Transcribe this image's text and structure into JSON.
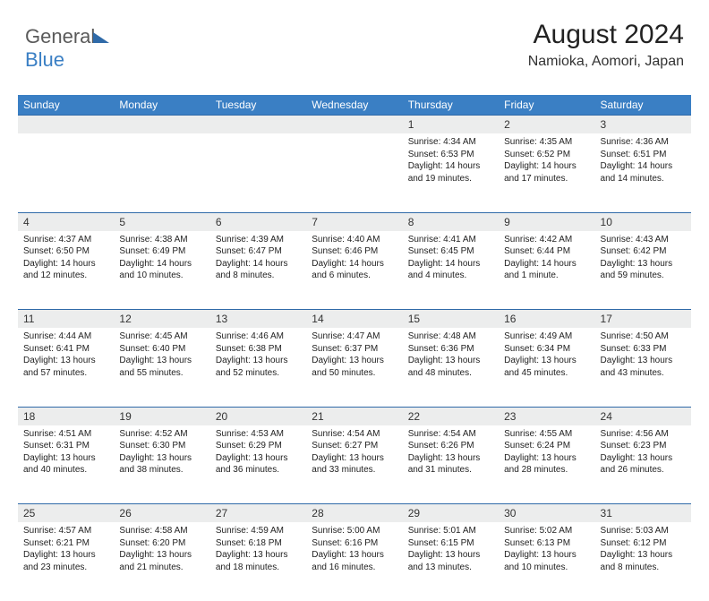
{
  "logo": {
    "text_gray": "General",
    "text_blue": "Blue"
  },
  "header": {
    "month_title": "August 2024",
    "location": "Namioka, Aomori, Japan"
  },
  "colors": {
    "header_bg": "#3a7fc4",
    "header_text": "#ffffff",
    "daynum_bg": "#eceded",
    "rule": "#2f6aa8",
    "body_text": "#222222"
  },
  "weekdays": [
    "Sunday",
    "Monday",
    "Tuesday",
    "Wednesday",
    "Thursday",
    "Friday",
    "Saturday"
  ],
  "grid": {
    "first_weekday_index": 4,
    "days_in_month": 31
  },
  "days": {
    "1": {
      "sunrise": "4:34 AM",
      "sunset": "6:53 PM",
      "daylight": "14 hours and 19 minutes."
    },
    "2": {
      "sunrise": "4:35 AM",
      "sunset": "6:52 PM",
      "daylight": "14 hours and 17 minutes."
    },
    "3": {
      "sunrise": "4:36 AM",
      "sunset": "6:51 PM",
      "daylight": "14 hours and 14 minutes."
    },
    "4": {
      "sunrise": "4:37 AM",
      "sunset": "6:50 PM",
      "daylight": "14 hours and 12 minutes."
    },
    "5": {
      "sunrise": "4:38 AM",
      "sunset": "6:49 PM",
      "daylight": "14 hours and 10 minutes."
    },
    "6": {
      "sunrise": "4:39 AM",
      "sunset": "6:47 PM",
      "daylight": "14 hours and 8 minutes."
    },
    "7": {
      "sunrise": "4:40 AM",
      "sunset": "6:46 PM",
      "daylight": "14 hours and 6 minutes."
    },
    "8": {
      "sunrise": "4:41 AM",
      "sunset": "6:45 PM",
      "daylight": "14 hours and 4 minutes."
    },
    "9": {
      "sunrise": "4:42 AM",
      "sunset": "6:44 PM",
      "daylight": "14 hours and 1 minute."
    },
    "10": {
      "sunrise": "4:43 AM",
      "sunset": "6:42 PM",
      "daylight": "13 hours and 59 minutes."
    },
    "11": {
      "sunrise": "4:44 AM",
      "sunset": "6:41 PM",
      "daylight": "13 hours and 57 minutes."
    },
    "12": {
      "sunrise": "4:45 AM",
      "sunset": "6:40 PM",
      "daylight": "13 hours and 55 minutes."
    },
    "13": {
      "sunrise": "4:46 AM",
      "sunset": "6:38 PM",
      "daylight": "13 hours and 52 minutes."
    },
    "14": {
      "sunrise": "4:47 AM",
      "sunset": "6:37 PM",
      "daylight": "13 hours and 50 minutes."
    },
    "15": {
      "sunrise": "4:48 AM",
      "sunset": "6:36 PM",
      "daylight": "13 hours and 48 minutes."
    },
    "16": {
      "sunrise": "4:49 AM",
      "sunset": "6:34 PM",
      "daylight": "13 hours and 45 minutes."
    },
    "17": {
      "sunrise": "4:50 AM",
      "sunset": "6:33 PM",
      "daylight": "13 hours and 43 minutes."
    },
    "18": {
      "sunrise": "4:51 AM",
      "sunset": "6:31 PM",
      "daylight": "13 hours and 40 minutes."
    },
    "19": {
      "sunrise": "4:52 AM",
      "sunset": "6:30 PM",
      "daylight": "13 hours and 38 minutes."
    },
    "20": {
      "sunrise": "4:53 AM",
      "sunset": "6:29 PM",
      "daylight": "13 hours and 36 minutes."
    },
    "21": {
      "sunrise": "4:54 AM",
      "sunset": "6:27 PM",
      "daylight": "13 hours and 33 minutes."
    },
    "22": {
      "sunrise": "4:54 AM",
      "sunset": "6:26 PM",
      "daylight": "13 hours and 31 minutes."
    },
    "23": {
      "sunrise": "4:55 AM",
      "sunset": "6:24 PM",
      "daylight": "13 hours and 28 minutes."
    },
    "24": {
      "sunrise": "4:56 AM",
      "sunset": "6:23 PM",
      "daylight": "13 hours and 26 minutes."
    },
    "25": {
      "sunrise": "4:57 AM",
      "sunset": "6:21 PM",
      "daylight": "13 hours and 23 minutes."
    },
    "26": {
      "sunrise": "4:58 AM",
      "sunset": "6:20 PM",
      "daylight": "13 hours and 21 minutes."
    },
    "27": {
      "sunrise": "4:59 AM",
      "sunset": "6:18 PM",
      "daylight": "13 hours and 18 minutes."
    },
    "28": {
      "sunrise": "5:00 AM",
      "sunset": "6:16 PM",
      "daylight": "13 hours and 16 minutes."
    },
    "29": {
      "sunrise": "5:01 AM",
      "sunset": "6:15 PM",
      "daylight": "13 hours and 13 minutes."
    },
    "30": {
      "sunrise": "5:02 AM",
      "sunset": "6:13 PM",
      "daylight": "13 hours and 10 minutes."
    },
    "31": {
      "sunrise": "5:03 AM",
      "sunset": "6:12 PM",
      "daylight": "13 hours and 8 minutes."
    }
  },
  "labels": {
    "sunrise_prefix": "Sunrise: ",
    "sunset_prefix": "Sunset: ",
    "daylight_prefix": "Daylight: "
  }
}
